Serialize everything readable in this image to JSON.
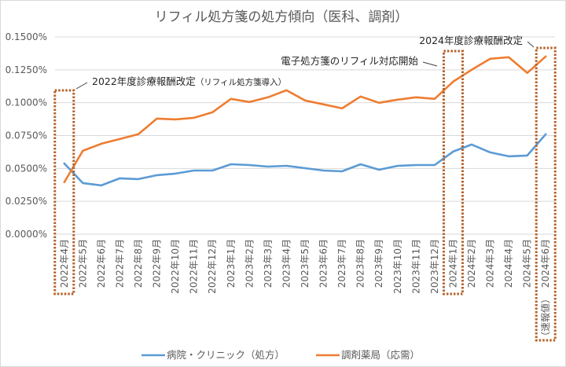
{
  "chart_data": {
    "type": "line",
    "title": "リフィル処方箋の処方傾向（医科、調剤）",
    "xlabel": "",
    "ylabel": "",
    "ylim": [
      0,
      0.15
    ],
    "y_unit": "%",
    "y_ticks": [
      "0.0000%",
      "0.0250%",
      "0.0500%",
      "0.0750%",
      "0.1000%",
      "0.1250%",
      "0.1500%"
    ],
    "y_tick_values": [
      0,
      0.025,
      0.05,
      0.075,
      0.1,
      0.125,
      0.15
    ],
    "grid": true,
    "legend_position": "bottom",
    "categories": [
      "2022年4月",
      "2022年5月",
      "2022年6月",
      "2022年7月",
      "2022年8月",
      "2022年9月",
      "2022年10月",
      "2022年11月",
      "2022年12月",
      "2023年1月",
      "2023年2月",
      "2023年3月",
      "2023年4月",
      "2023年5月",
      "2023年6月",
      "2023年7月",
      "2023年8月",
      "2023年9月",
      "2023年10月",
      "2023年11月",
      "2023年12月",
      "2024年1月",
      "2024年2月",
      "2024年3月",
      "2024年4月",
      "2024年5月",
      "2024年6月"
    ],
    "last_category_note": "（速報値）",
    "series": [
      {
        "name": "病院・クリニック（処方）",
        "color": "#5b9bd5",
        "values": [
          0.0538,
          0.0389,
          0.0371,
          0.0425,
          0.0419,
          0.0449,
          0.0461,
          0.0484,
          0.0484,
          0.0532,
          0.0526,
          0.0514,
          0.052,
          0.0502,
          0.0484,
          0.0478,
          0.0532,
          0.049,
          0.052,
          0.0526,
          0.0526,
          0.0628,
          0.0682,
          0.0622,
          0.0592,
          0.0598,
          0.076
        ]
      },
      {
        "name": "調剤薬局（応需）",
        "color": "#ed7d31",
        "values": [
          0.0395,
          0.0634,
          0.0688,
          0.0724,
          0.076,
          0.0879,
          0.0873,
          0.0885,
          0.0927,
          0.1029,
          0.1005,
          0.1041,
          0.1094,
          0.1017,
          0.0987,
          0.0957,
          0.1047,
          0.0999,
          0.1023,
          0.1041,
          0.1029,
          0.116,
          0.125,
          0.1334,
          0.1346,
          0.1226,
          0.1352
        ]
      }
    ],
    "annotations": [
      {
        "label": "2022年度診療報酬改定",
        "sublabel": "（リフィル処方箋導入）",
        "category_index": 0
      },
      {
        "label": "電子処方箋のリフィル対応開始",
        "sublabel": "",
        "category_index": 21
      },
      {
        "label": "2024年度診療報酬改定",
        "sublabel": "",
        "category_index": 26
      }
    ],
    "highlight_box_color": "#b4622a",
    "grid_color": "#d9d9d9"
  }
}
